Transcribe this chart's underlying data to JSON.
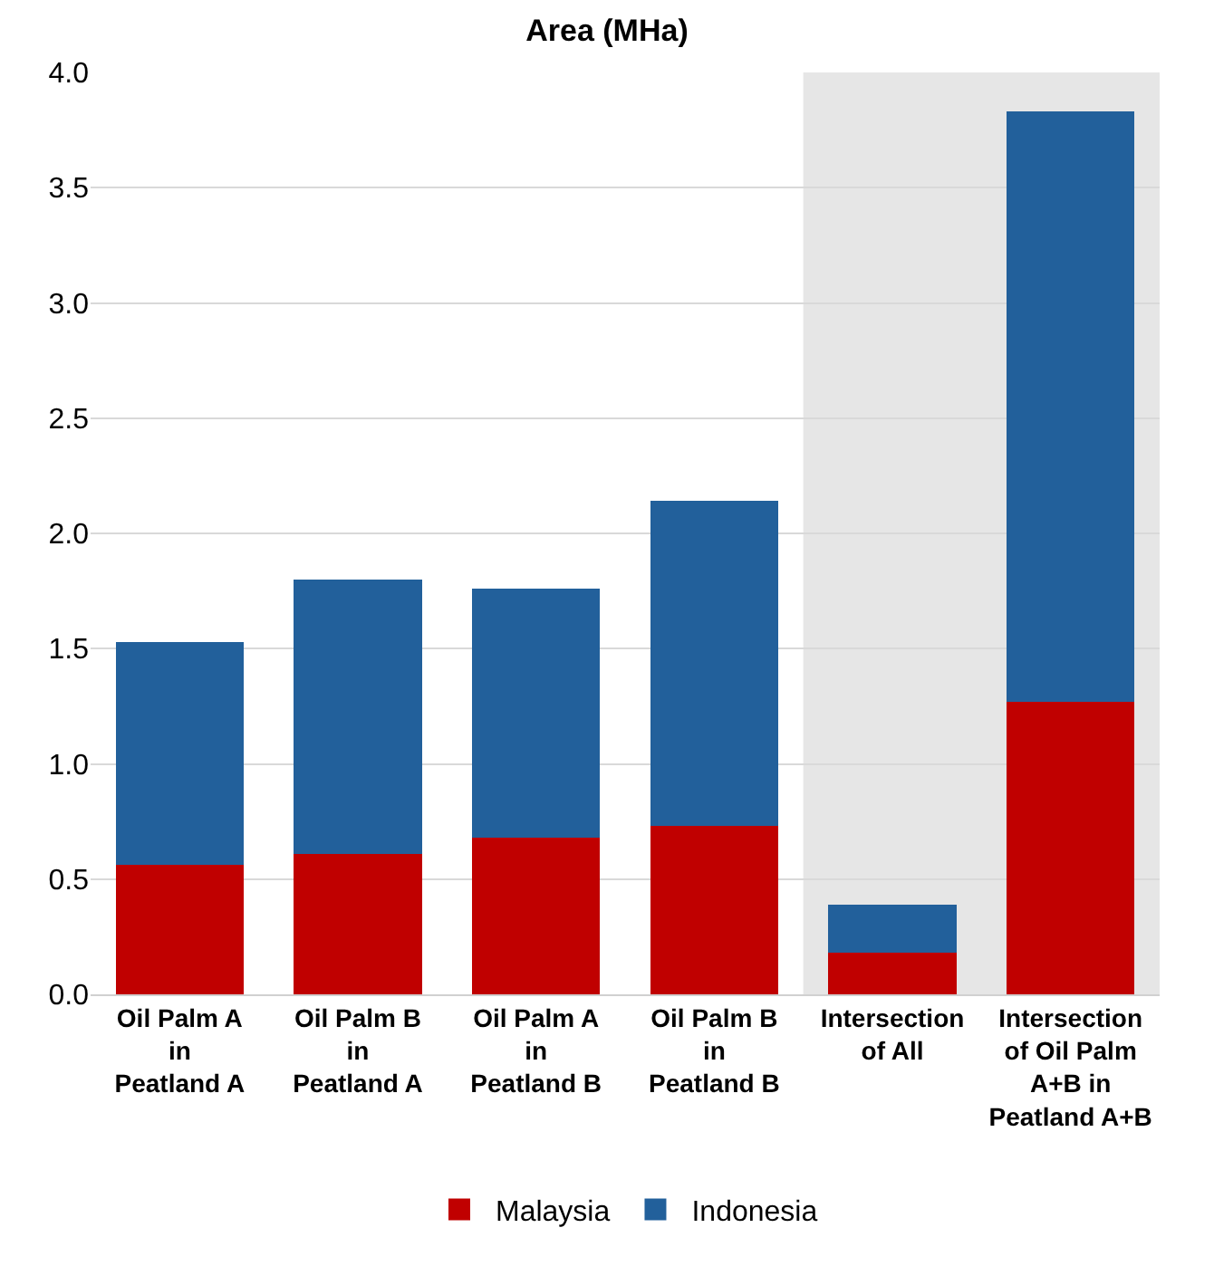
{
  "chart_data": {
    "type": "bar",
    "title": "Area (MHa)",
    "stacked": true,
    "categories": [
      "Oil Palm A\nin\nPeatland A",
      "Oil Palm B\nin\nPeatland A",
      "Oil Palm A\nin\nPeatland B",
      "Oil Palm B\nin\nPeatland B",
      "Intersection\nof All",
      "Intersection\nof Oil Palm\nA+B in\nPeatland A+B"
    ],
    "series": [
      {
        "name": "Malaysia",
        "color": "#c00000",
        "values": [
          0.56,
          0.61,
          0.68,
          0.73,
          0.18,
          1.27
        ]
      },
      {
        "name": "Indonesia",
        "color": "#22609b",
        "values": [
          0.97,
          1.19,
          1.08,
          1.41,
          0.21,
          2.56
        ]
      }
    ],
    "ylim": [
      0,
      4
    ],
    "yticks": [
      {
        "value": 0,
        "label": "0.0"
      },
      {
        "value": 0.5,
        "label": "0.5"
      },
      {
        "value": 1,
        "label": "1.0"
      },
      {
        "value": 1.5,
        "label": "1.5"
      },
      {
        "value": 2,
        "label": "2.0"
      },
      {
        "value": 2.5,
        "label": "2.5"
      },
      {
        "value": 3,
        "label": "3.0"
      },
      {
        "value": 3.5,
        "label": "3.5"
      },
      {
        "value": 4,
        "label": "4.0"
      }
    ],
    "grid": "y",
    "legend": "bottom",
    "bands": [
      {
        "axis": "x",
        "from": "Intersection\nof All",
        "to": "Intersection\nof Oil Palm\nA+B in\nPeatland A+B",
        "color": "#e6e6e6"
      }
    ]
  }
}
